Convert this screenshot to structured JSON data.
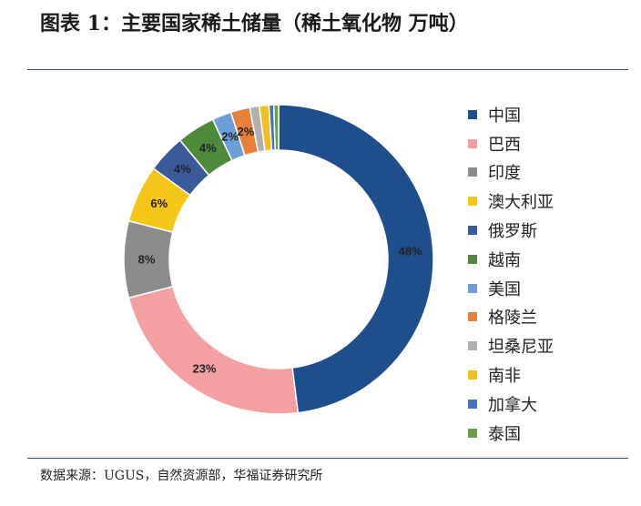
{
  "title": "图表 1：主要国家稀土储量（稀土氧化物 万吨）",
  "source": "数据来源：UGUS，自然资源部，华福证券研究所",
  "chart_data": {
    "type": "pie",
    "donut": true,
    "legend_position": "right",
    "categories": [
      "中国",
      "巴西",
      "印度",
      "澳大利亚",
      "俄罗斯",
      "越南",
      "美国",
      "格陵兰",
      "坦桑尼亚",
      "南非",
      "加拿大",
      "泰国"
    ],
    "values": [
      48,
      23,
      8,
      6,
      4,
      4,
      2,
      2,
      1,
      1,
      0.5,
      0.5
    ],
    "data_labels": [
      "48%",
      "23%",
      "8%",
      "6%",
      "4%",
      "4%",
      "2%",
      "2%",
      "",
      "",
      "",
      ""
    ],
    "colors": [
      "#1f4e8c",
      "#f4a0a0",
      "#8c8c8c",
      "#f5c518",
      "#3a5a9a",
      "#4e8a3a",
      "#6a9fd8",
      "#e8803a",
      "#b0b0b0",
      "#f0c020",
      "#4a70c0",
      "#6aa04a"
    ]
  }
}
